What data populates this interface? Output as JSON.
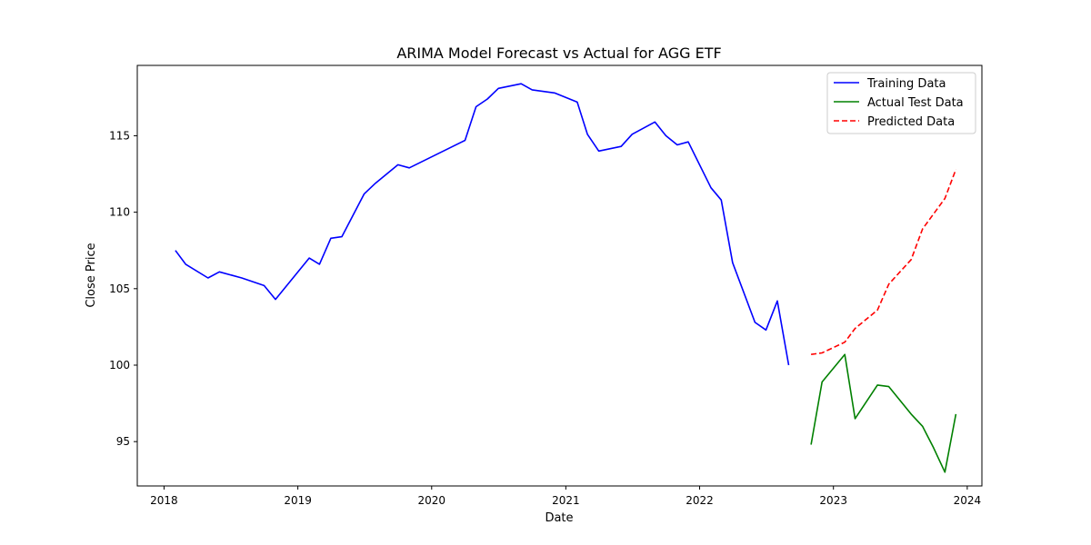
{
  "chart_data": {
    "type": "line",
    "title": "ARIMA Model Forecast vs Actual for AGG ETF",
    "xlabel": "Date",
    "ylabel": "Close Price",
    "xlim": [
      "2017-10-20",
      "2024-02-10"
    ],
    "ylim": [
      92.1,
      119.6
    ],
    "x_ticks": [
      "2018",
      "2019",
      "2020",
      "2021",
      "2022",
      "2023",
      "2024"
    ],
    "y_ticks": [
      95,
      100,
      105,
      110,
      115
    ],
    "grid": false,
    "legend_position": "top-right",
    "series": [
      {
        "name": "Training Data",
        "color": "#0000ff",
        "dash": "solid",
        "points": [
          [
            "2018-02-01",
            107.5
          ],
          [
            "2018-03-01",
            106.6
          ],
          [
            "2018-05-01",
            105.7
          ],
          [
            "2018-06-01",
            106.1
          ],
          [
            "2018-08-01",
            105.7
          ],
          [
            "2018-10-01",
            105.2
          ],
          [
            "2018-11-01",
            104.3
          ],
          [
            "2019-02-01",
            107.0
          ],
          [
            "2019-03-01",
            106.6
          ],
          [
            "2019-04-01",
            108.3
          ],
          [
            "2019-05-01",
            108.4
          ],
          [
            "2019-07-01",
            111.2
          ],
          [
            "2019-08-01",
            111.9
          ],
          [
            "2019-10-01",
            113.1
          ],
          [
            "2019-11-01",
            112.9
          ],
          [
            "2020-04-01",
            114.7
          ],
          [
            "2020-05-01",
            116.9
          ],
          [
            "2020-06-01",
            117.4
          ],
          [
            "2020-07-01",
            118.1
          ],
          [
            "2020-09-01",
            118.4
          ],
          [
            "2020-10-01",
            118.0
          ],
          [
            "2020-12-01",
            117.8
          ],
          [
            "2021-02-01",
            117.2
          ],
          [
            "2021-03-01",
            115.1
          ],
          [
            "2021-04-01",
            114.0
          ],
          [
            "2021-06-01",
            114.3
          ],
          [
            "2021-07-01",
            115.1
          ],
          [
            "2021-09-01",
            115.9
          ],
          [
            "2021-10-01",
            115.0
          ],
          [
            "2021-11-01",
            114.4
          ],
          [
            "2021-12-01",
            114.6
          ],
          [
            "2022-02-01",
            111.6
          ],
          [
            "2022-03-01",
            110.8
          ],
          [
            "2022-04-01",
            106.7
          ],
          [
            "2022-06-01",
            102.8
          ],
          [
            "2022-07-01",
            102.3
          ],
          [
            "2022-08-01",
            104.2
          ],
          [
            "2022-09-01",
            100.0
          ]
        ]
      },
      {
        "name": "Actual Test Data",
        "color": "#008000",
        "dash": "solid",
        "points": [
          [
            "2022-11-01",
            94.8
          ],
          [
            "2022-12-01",
            98.9
          ],
          [
            "2023-02-01",
            100.7
          ],
          [
            "2023-03-01",
            96.5
          ],
          [
            "2023-05-01",
            98.7
          ],
          [
            "2023-06-01",
            98.6
          ],
          [
            "2023-08-01",
            96.8
          ],
          [
            "2023-09-01",
            96.0
          ],
          [
            "2023-10-01",
            94.6
          ],
          [
            "2023-11-01",
            93.0
          ],
          [
            "2023-12-01",
            96.8
          ]
        ]
      },
      {
        "name": "Predicted Data",
        "color": "#ff0000",
        "dash": "dashed",
        "points": [
          [
            "2022-11-01",
            100.7
          ],
          [
            "2022-12-01",
            100.8
          ],
          [
            "2023-02-01",
            101.5
          ],
          [
            "2023-03-01",
            102.4
          ],
          [
            "2023-05-01",
            103.6
          ],
          [
            "2023-06-01",
            105.3
          ],
          [
            "2023-08-01",
            106.9
          ],
          [
            "2023-09-01",
            108.9
          ],
          [
            "2023-11-01",
            110.9
          ],
          [
            "2023-12-01",
            112.8
          ]
        ]
      }
    ]
  }
}
